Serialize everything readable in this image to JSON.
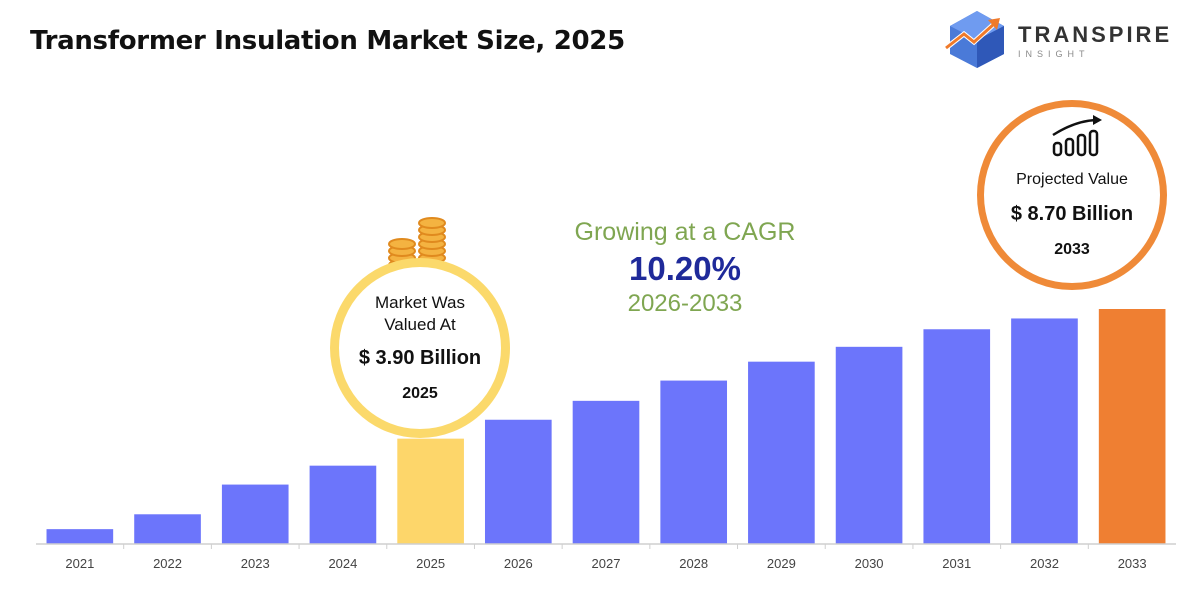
{
  "title": "Transformer Insulation Market Size, 2025",
  "brand": {
    "name": "TRANSPIRE",
    "tagline": "INSIGHT"
  },
  "cagr": {
    "heading": "Growing at a CAGR",
    "value": "10.20%",
    "period": "2026-2033"
  },
  "callout_start": {
    "label_line1": "Market Was",
    "label_line2": "Valued At",
    "value": "$ 3.90 Billion",
    "year": "2025",
    "icon": "coins-icon"
  },
  "callout_end": {
    "label": "Projected Value",
    "value": "$ 8.70 Billion",
    "year": "2033",
    "icon": "growth-bars-icon"
  },
  "colors": {
    "bar": "#6c75fb",
    "highlight_base": "#fdd66a",
    "highlight_projected": "#ef7f32",
    "axis": "#cfcfcf",
    "tick_label": "#444444"
  },
  "chart_data": {
    "type": "bar",
    "categories": [
      "2021",
      "2022",
      "2023",
      "2024",
      "2025",
      "2026",
      "2027",
      "2028",
      "2029",
      "2030",
      "2031",
      "2032",
      "2033"
    ],
    "values": [
      0.55,
      1.1,
      2.2,
      2.9,
      3.9,
      4.6,
      5.3,
      6.05,
      6.75,
      7.3,
      7.95,
      8.35,
      8.7
    ],
    "highlight": {
      "2025": "base",
      "2033": "projected"
    },
    "xlabel": "",
    "ylabel": "",
    "ylim": [
      0,
      8.7
    ],
    "grid": false,
    "legend": "none"
  }
}
